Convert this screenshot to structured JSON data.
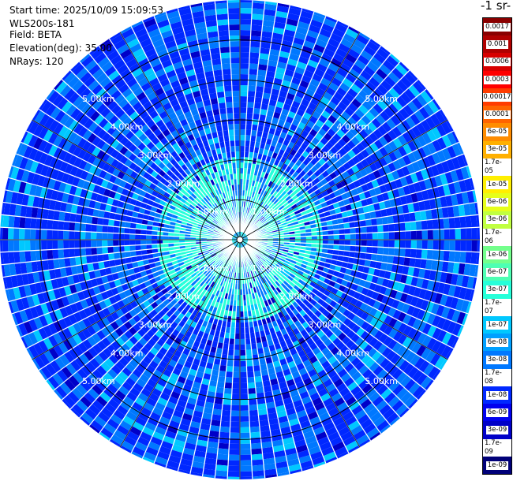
{
  "header": {
    "start_time": "Start time: 2025/10/09 15:09:53",
    "instrument": "WLS200s-181",
    "field": "Field: BETA",
    "elevation": "Elevation(deg): 35.00",
    "nrays": "NRays: 120"
  },
  "colorbar": {
    "title": "-1 sr-",
    "labels": [
      "0.0017",
      "0.001",
      "0.0006",
      "0.0003",
      "0.00017",
      "0.0001",
      "6e-05",
      "3e-05",
      "1.7e-05",
      "1e-05",
      "6e-06",
      "3e-06",
      "1.7e-06",
      "1e-06",
      "6e-07",
      "3e-07",
      "1.7e-07",
      "1e-07",
      "6e-08",
      "3e-08",
      "1.7e-08",
      "1e-08",
      "6e-09",
      "3e-09",
      "1.7e-09",
      "1e-09"
    ],
    "colors": [
      "#8a0000",
      "#b00000",
      "#d80000",
      "#ff0000",
      "#ff3c00",
      "#ff6400",
      "#ff8c00",
      "#ffb000",
      "#ffd400",
      "#ffef00",
      "#e6ff1a",
      "#c0ff40",
      "#99ff66",
      "#73ff8c",
      "#4dffb3",
      "#26ffd9",
      "#00f5ff",
      "#00c8ff",
      "#00a0ff",
      "#0078ff",
      "#0050ff",
      "#0028ff",
      "#0000ee",
      "#0000c8",
      "#00009f",
      "#000078"
    ]
  },
  "chart_data": {
    "type": "heatmap",
    "projection": "polar (PPI scan)",
    "field": "BETA",
    "elevation_deg": 35.0,
    "n_rays": 120,
    "range_rings_km": [
      1,
      2,
      3,
      4,
      5
    ],
    "ring_labels": [
      "1.00km",
      "2.00km",
      "3.00km",
      "4.00km",
      "5.00km"
    ],
    "max_range_km": 6.0,
    "color_scale": "log",
    "value_range": [
      1e-09,
      0.0017
    ],
    "dominant_values": [
      1e-08,
      3e-08,
      1e-07
    ],
    "near_range_value": 3e-07
  }
}
